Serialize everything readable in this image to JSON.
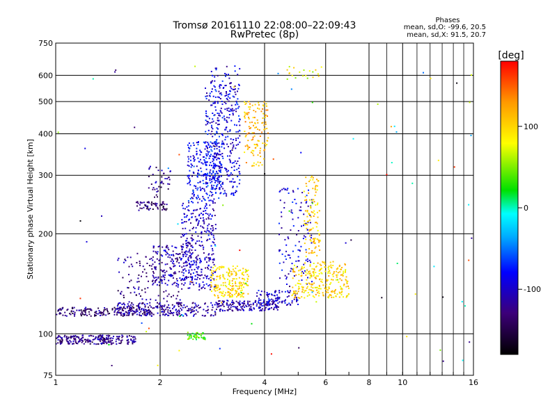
{
  "chart_data": {
    "type": "scatter",
    "title": "Tromsø 20161110 22:08:00–22:09:43",
    "subtitle": "RwPretec (8p)",
    "xlabel": "Frequency [MHz]",
    "ylabel": "Stationary phase Virtual Height [km]",
    "xscale": "log",
    "yscale": "log",
    "xlim": [
      1,
      16
    ],
    "ylim": [
      75,
      750
    ],
    "x_ticks": [
      1,
      2,
      4,
      6,
      8,
      10,
      16
    ],
    "x_tick_labels": [
      "1",
      "2",
      "4",
      "6",
      "8",
      "10",
      "16"
    ],
    "y_ticks": [
      75,
      100,
      200,
      300,
      400,
      500,
      600,
      750
    ],
    "y_tick_labels": [
      "75",
      "100",
      "200",
      "300",
      "400",
      "500",
      "600",
      "750"
    ],
    "grid": true,
    "stats": {
      "title": "Phases",
      "line_o": "mean, sd,O: -99.6, 20.5",
      "line_x": "mean, sd,X:  91.5, 20.7"
    },
    "colorbar": {
      "label": "[deg]",
      "range": [
        -180,
        180
      ],
      "ticks": [
        100,
        0,
        -100
      ],
      "tick_labels": [
        "100",
        "0",
        "-100"
      ]
    },
    "clusters": [
      {
        "xr": [
          1.0,
          1.7
        ],
        "yr": [
          93,
          99
        ],
        "phase": -125,
        "n": 230
      },
      {
        "xr": [
          1.0,
          1.9
        ],
        "yr": [
          113,
          120
        ],
        "phase": -130,
        "n": 160
      },
      {
        "xr": [
          1.5,
          2.9
        ],
        "yr": [
          113,
          124
        ],
        "phase": -118,
        "n": 240
      },
      {
        "xr": [
          2.9,
          4.4
        ],
        "yr": [
          117,
          126
        ],
        "phase": -110,
        "n": 170
      },
      {
        "xr": [
          3.8,
          5.0
        ],
        "yr": [
          122,
          135
        ],
        "phase": -95,
        "n": 90
      },
      {
        "xr": [
          1.5,
          2.3
        ],
        "yr": [
          120,
          175
        ],
        "phase": -125,
        "n": 130
      },
      {
        "xr": [
          1.9,
          2.5
        ],
        "yr": [
          140,
          185
        ],
        "phase": -110,
        "n": 150
      },
      {
        "xr": [
          2.3,
          2.9
        ],
        "yr": [
          135,
          250
        ],
        "phase": -100,
        "n": 320
      },
      {
        "xr": [
          2.4,
          3.0
        ],
        "yr": [
          250,
          380
        ],
        "phase": -85,
        "n": 240
      },
      {
        "xr": [
          2.7,
          3.4
        ],
        "yr": [
          260,
          560
        ],
        "phase": -90,
        "n": 360
      },
      {
        "xr": [
          2.8,
          3.4
        ],
        "yr": [
          560,
          640
        ],
        "phase": -95,
        "n": 30
      },
      {
        "xr": [
          1.7,
          2.1
        ],
        "yr": [
          235,
          250
        ],
        "phase": -135,
        "n": 60
      },
      {
        "xr": [
          1.85,
          2.15
        ],
        "yr": [
          255,
          320
        ],
        "phase": -120,
        "n": 40
      },
      {
        "xr": [
          2.8,
          3.6
        ],
        "yr": [
          128,
          160
        ],
        "phase": 100,
        "n": 200
      },
      {
        "xr": [
          3.5,
          4.1
        ],
        "yr": [
          320,
          500
        ],
        "phase": 115,
        "n": 130
      },
      {
        "xr": [
          4.4,
          5.5
        ],
        "yr": [
          140,
          280
        ],
        "phase": -95,
        "n": 120
      },
      {
        "xr": [
          5.2,
          5.8
        ],
        "yr": [
          170,
          300
        ],
        "phase": 105,
        "n": 110
      },
      {
        "xr": [
          4.8,
          7.0
        ],
        "yr": [
          128,
          165
        ],
        "phase": 100,
        "n": 260
      },
      {
        "xr": [
          2.4,
          2.7
        ],
        "yr": [
          96,
          101
        ],
        "phase": 35,
        "n": 45
      },
      {
        "xr": [
          4.6,
          6.0
        ],
        "yr": [
          580,
          640
        ],
        "phase": 80,
        "n": 20
      },
      {
        "xr": [
          1.0,
          16.0
        ],
        "yr": [
          80,
          650
        ],
        "phase": 0,
        "n": 90,
        "phase_spread": 180
      }
    ]
  }
}
